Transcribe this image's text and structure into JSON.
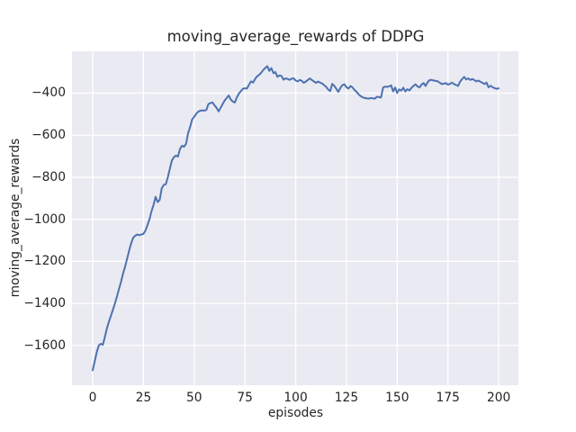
{
  "chart_data": {
    "type": "line",
    "title": "moving_average_rewards of DDPG",
    "xlabel": "episodes",
    "ylabel": "moving_average_rewards",
    "x_ticks": [
      0,
      25,
      50,
      75,
      100,
      125,
      150,
      175,
      200
    ],
    "y_ticks": [
      -400,
      -600,
      -800,
      -1000,
      -1200,
      -1400,
      -1600
    ],
    "xlim": [
      -10.2,
      209.7
    ],
    "ylim": [
      -1789,
      -201
    ],
    "grid": true,
    "legend_position": "none",
    "style": {
      "figure_bg": "#ffffff",
      "plot_bg": "#eaeaf2",
      "grid_color": "#ffffff",
      "text_color": "#262626",
      "line_width": 2,
      "grid_width": 1.3
    },
    "series": [
      {
        "name": "moving_average_rewards",
        "color": "#4c72b0",
        "x_start": 0,
        "x_step": 1,
        "y": [
          -1718,
          -1674,
          -1632,
          -1600,
          -1592,
          -1597,
          -1560,
          -1519,
          -1486,
          -1458,
          -1428,
          -1399,
          -1365,
          -1330,
          -1295,
          -1257,
          -1223,
          -1185,
          -1147,
          -1112,
          -1087,
          -1077,
          -1072,
          -1076,
          -1072,
          -1069,
          -1053,
          -1027,
          -998,
          -961,
          -930,
          -893,
          -918,
          -908,
          -853,
          -836,
          -833,
          -800,
          -760,
          -720,
          -705,
          -697,
          -702,
          -665,
          -650,
          -655,
          -640,
          -590,
          -560,
          -525,
          -512,
          -498,
          -488,
          -484,
          -482,
          -483,
          -480,
          -452,
          -447,
          -444,
          -458,
          -470,
          -487,
          -470,
          -452,
          -435,
          -423,
          -411,
          -430,
          -440,
          -444,
          -420,
          -402,
          -390,
          -379,
          -377,
          -378,
          -360,
          -344,
          -350,
          -332,
          -320,
          -313,
          -303,
          -290,
          -280,
          -272,
          -294,
          -281,
          -305,
          -300,
          -322,
          -316,
          -318,
          -336,
          -330,
          -332,
          -337,
          -331,
          -330,
          -340,
          -344,
          -337,
          -342,
          -351,
          -345,
          -337,
          -330,
          -338,
          -345,
          -351,
          -345,
          -350,
          -354,
          -362,
          -370,
          -383,
          -390,
          -356,
          -365,
          -380,
          -394,
          -375,
          -362,
          -358,
          -372,
          -378,
          -366,
          -373,
          -385,
          -394,
          -406,
          -414,
          -420,
          -423,
          -425,
          -426,
          -423,
          -425,
          -426,
          -417,
          -419,
          -421,
          -374,
          -369,
          -370,
          -368,
          -363,
          -392,
          -373,
          -399,
          -382,
          -388,
          -374,
          -392,
          -381,
          -387,
          -375,
          -366,
          -358,
          -368,
          -373,
          -360,
          -352,
          -366,
          -348,
          -338,
          -337,
          -340,
          -342,
          -344,
          -351,
          -357,
          -355,
          -352,
          -360,
          -356,
          -350,
          -357,
          -361,
          -366,
          -345,
          -333,
          -323,
          -335,
          -330,
          -337,
          -333,
          -338,
          -344,
          -340,
          -346,
          -351,
          -357,
          -350,
          -372,
          -365,
          -372,
          -376,
          -380,
          -377
        ]
      }
    ]
  }
}
